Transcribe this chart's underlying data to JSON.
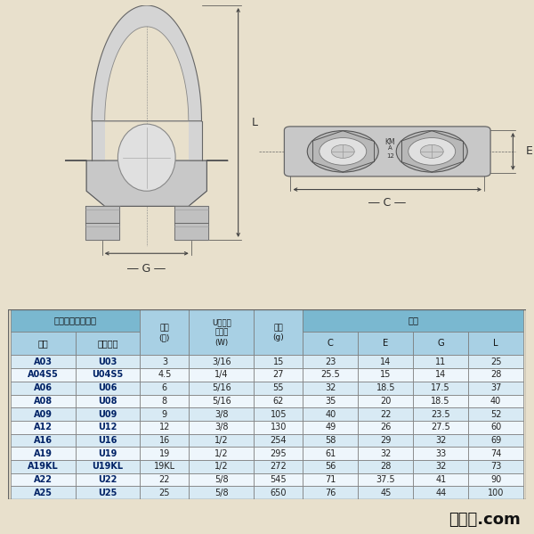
{
  "bg_color": "#e8e0cc",
  "diagram_bg": "#ede8d8",
  "table_bg": "#ffffff",
  "hdr1_bg": "#7ab8d0",
  "hdr2_bg": "#a8d0e4",
  "row_bg_a": "#d8eaf4",
  "row_bg_b": "#eef6fc",
  "border_color": "#888888",
  "bold_col_color": "#002266",
  "footer_text": "道具屋.com",
  "rows": [
    [
      "A03",
      "U03",
      "3",
      "3/16",
      "15",
      "23",
      "14",
      "11",
      "25"
    ],
    [
      "A04S5",
      "U04S5",
      "4.5",
      "1/4",
      "27",
      "25.5",
      "15",
      "14",
      "28"
    ],
    [
      "A06",
      "U06",
      "6",
      "5/16",
      "55",
      "32",
      "18.5",
      "17.5",
      "37"
    ],
    [
      "A08",
      "U08",
      "8",
      "5/16",
      "62",
      "35",
      "20",
      "18.5",
      "40"
    ],
    [
      "A09",
      "U09",
      "9",
      "3/8",
      "105",
      "40",
      "22",
      "23.5",
      "52"
    ],
    [
      "A12",
      "U12",
      "12",
      "3/8",
      "130",
      "49",
      "26",
      "27.5",
      "60"
    ],
    [
      "A16",
      "U16",
      "16",
      "1/2",
      "254",
      "58",
      "29",
      "32",
      "69"
    ],
    [
      "A19",
      "U19",
      "19",
      "1/2",
      "295",
      "61",
      "32",
      "33",
      "74"
    ],
    [
      "A19KL",
      "U19KL",
      "19KL",
      "1/2",
      "272",
      "56",
      "28",
      "32",
      "73"
    ],
    [
      "A22",
      "U22",
      "22",
      "5/8",
      "545",
      "71",
      "37.5",
      "41",
      "90"
    ],
    [
      "A25",
      "U25",
      "25",
      "5/8",
      "650",
      "76",
      "45",
      "44",
      "100"
    ]
  ]
}
